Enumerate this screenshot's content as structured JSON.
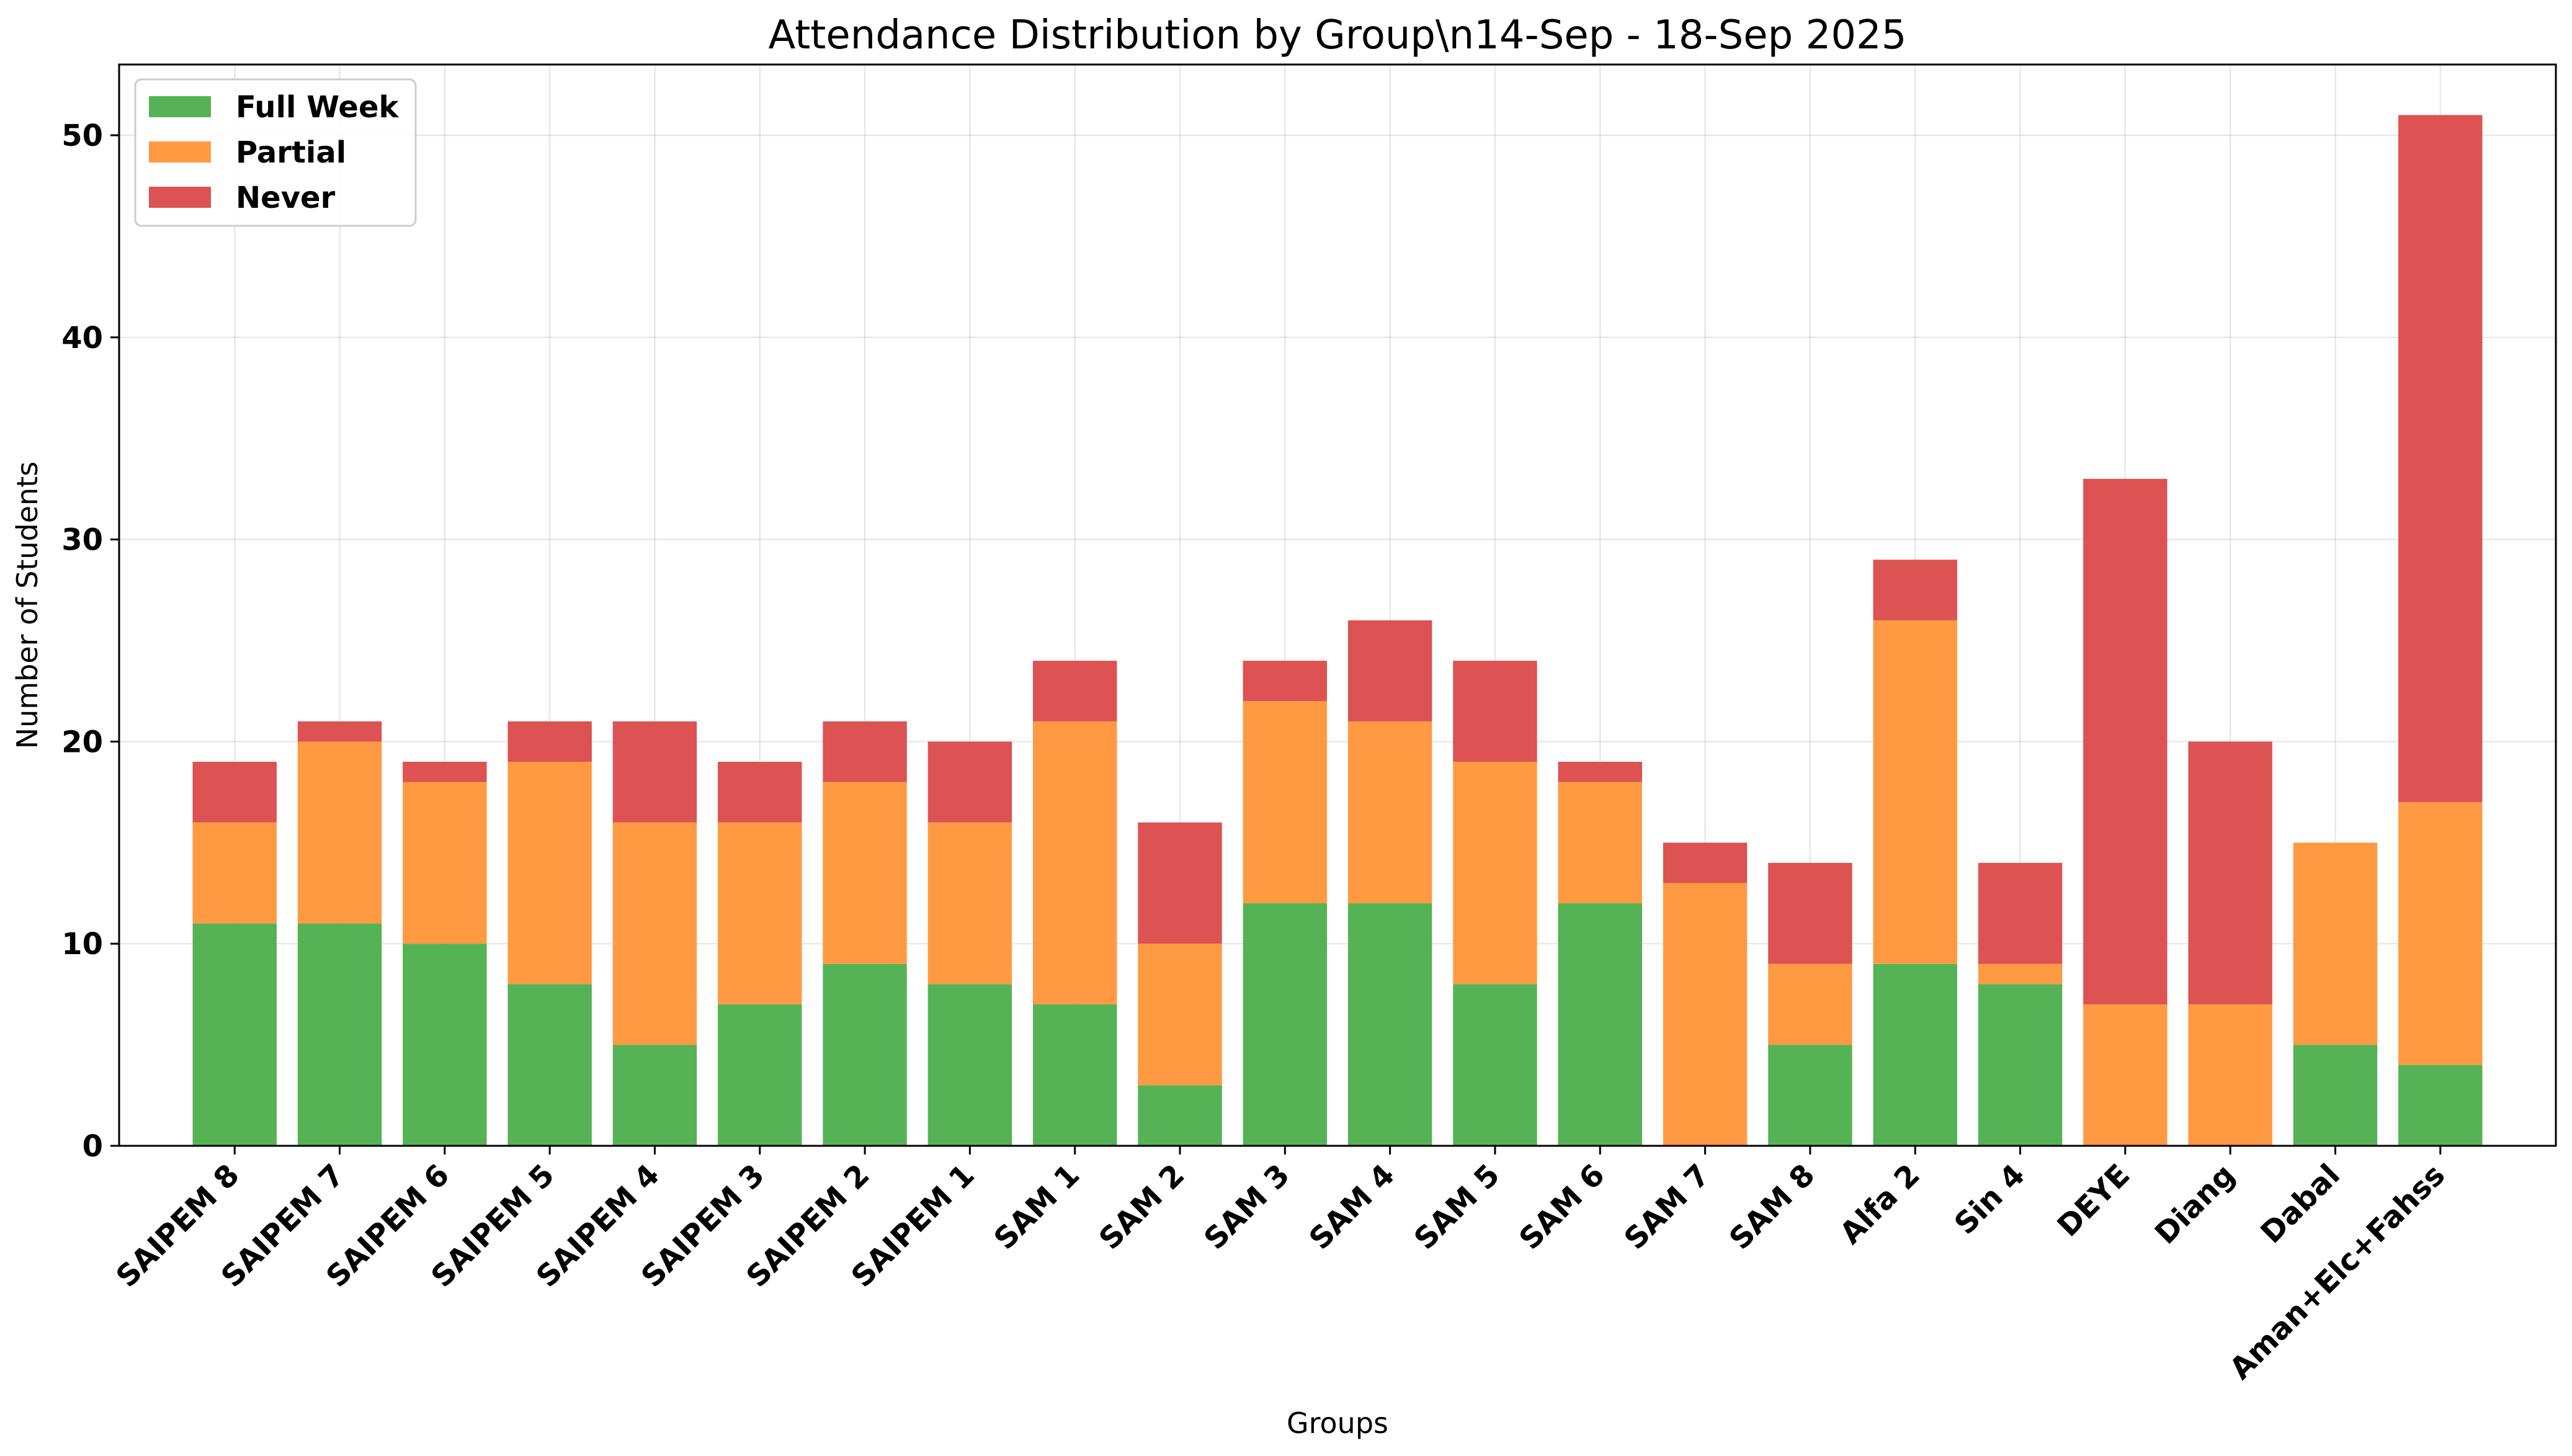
{
  "chart_data": {
    "type": "bar",
    "stacked": true,
    "title": "Attendance Distribution by Group\\n14-Sep - 18-Sep 2025",
    "xlabel": "Groups",
    "ylabel": "Number of Students",
    "ylim": [
      0,
      53.5
    ],
    "yticks": [
      0,
      10,
      20,
      30,
      40,
      50
    ],
    "grid": true,
    "legend_position": "top-left",
    "categories": [
      "SAIPEM 8",
      "SAIPEM 7",
      "SAIPEM 6",
      "SAIPEM 5",
      "SAIPEM 4",
      "SAIPEM 3",
      "SAIPEM 2",
      "SAIPEM 1",
      "SAM 1",
      "SAM 2",
      "SAM 3",
      "SAM 4",
      "SAM 5",
      "SAM 6",
      "SAM 7",
      "SAM 8",
      "Alfa 2",
      "Sin 4",
      "DEYE",
      "Diang",
      "Dabal",
      "Aman+Elc+Fahss"
    ],
    "series": [
      {
        "name": "Full Week",
        "color": "#55b355",
        "values": [
          11,
          11,
          10,
          8,
          5,
          7,
          9,
          8,
          7,
          3,
          12,
          12,
          8,
          12,
          0,
          5,
          9,
          8,
          0,
          0,
          5,
          4
        ]
      },
      {
        "name": "Partial",
        "color": "#ff9a42",
        "values": [
          5,
          9,
          8,
          11,
          11,
          9,
          9,
          8,
          14,
          7,
          10,
          9,
          11,
          6,
          13,
          4,
          17,
          1,
          7,
          7,
          10,
          13
        ]
      },
      {
        "name": "Never",
        "color": "#dd5252",
        "values": [
          3,
          1,
          1,
          2,
          5,
          3,
          3,
          4,
          3,
          6,
          2,
          5,
          5,
          1,
          2,
          5,
          3,
          5,
          26,
          13,
          0,
          34
        ]
      }
    ]
  }
}
